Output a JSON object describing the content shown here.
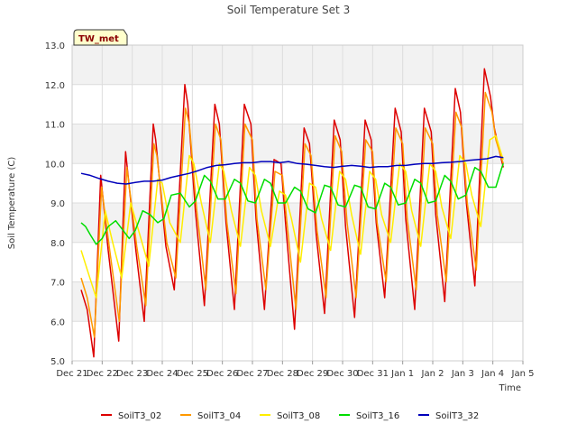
{
  "chart_data": {
    "type": "line",
    "title": "Soil Temperature Set 3",
    "xlabel": "Time",
    "ylabel": "Soil Temperature (C)",
    "badge": "TW_met",
    "ylim": [
      5.0,
      13.0
    ],
    "yticks": [
      "5.0",
      "6.0",
      "7.0",
      "8.0",
      "9.0",
      "10.0",
      "11.0",
      "12.0",
      "13.0"
    ],
    "xlim": [
      0,
      15
    ],
    "xticks": [
      {
        "pos": 0,
        "label": "Dec 21"
      },
      {
        "pos": 1,
        "label": "Dec 22"
      },
      {
        "pos": 2,
        "label": "Dec 23"
      },
      {
        "pos": 3,
        "label": "Dec 24"
      },
      {
        "pos": 4,
        "label": "Dec 25"
      },
      {
        "pos": 5,
        "label": "Dec 26"
      },
      {
        "pos": 6,
        "label": "Dec 27"
      },
      {
        "pos": 7,
        "label": "Dec 28"
      },
      {
        "pos": 8,
        "label": "Dec 29"
      },
      {
        "pos": 9,
        "label": "Dec 30"
      },
      {
        "pos": 10,
        "label": "Dec 31"
      },
      {
        "pos": 11,
        "label": "Jan 1"
      },
      {
        "pos": 12,
        "label": "Jan 2"
      },
      {
        "pos": 13,
        "label": "Jan 3"
      },
      {
        "pos": 14,
        "label": "Jan 4"
      },
      {
        "pos": 15,
        "label": "Jan 5"
      }
    ],
    "grid": true,
    "legend_position": "bottom",
    "series": [
      {
        "name": "SoilT3_02",
        "color": "#dd0000",
        "x": [
          0.3,
          0.5,
          0.72,
          0.95,
          1.2,
          1.55,
          1.78,
          2.12,
          2.4,
          2.7,
          2.78,
          3.12,
          3.4,
          3.75,
          3.85,
          4.1,
          4.4,
          4.75,
          4.9,
          5.12,
          5.4,
          5.73,
          5.95,
          6.12,
          6.4,
          6.72,
          6.95,
          7.1,
          7.4,
          7.72,
          7.9,
          8.12,
          8.4,
          8.72,
          8.92,
          9.1,
          9.4,
          9.75,
          9.95,
          10.12,
          10.4,
          10.75,
          10.95,
          11.1,
          11.4,
          11.72,
          11.95,
          12.1,
          12.4,
          12.75,
          12.92,
          13.12,
          13.4,
          13.72,
          13.92,
          14.05,
          14.25,
          14.35
        ],
        "y": [
          6.8,
          6.3,
          5.1,
          9.7,
          7.8,
          5.5,
          10.3,
          7.8,
          6.0,
          11.0,
          10.6,
          7.9,
          6.8,
          12.0,
          11.5,
          8.8,
          6.4,
          11.5,
          11.0,
          8.5,
          6.3,
          11.5,
          11.0,
          8.6,
          6.3,
          10.1,
          10.0,
          8.5,
          5.8,
          10.9,
          10.5,
          8.2,
          6.2,
          11.1,
          10.6,
          8.4,
          6.1,
          11.1,
          10.6,
          8.5,
          6.6,
          11.4,
          10.8,
          8.6,
          6.3,
          11.4,
          10.8,
          8.7,
          6.5,
          11.9,
          11.3,
          9.0,
          6.9,
          12.4,
          11.7,
          10.9,
          10.2,
          9.9
        ]
      },
      {
        "name": "SoilT3_04",
        "color": "#ff9900",
        "x": [
          0.3,
          0.5,
          0.74,
          0.98,
          1.25,
          1.57,
          1.82,
          2.15,
          2.45,
          2.72,
          2.82,
          3.15,
          3.45,
          3.77,
          3.9,
          4.15,
          4.45,
          4.77,
          4.95,
          5.15,
          5.45,
          5.75,
          6.0,
          6.15,
          6.45,
          6.75,
          7.0,
          7.15,
          7.45,
          7.75,
          7.95,
          8.15,
          8.45,
          8.75,
          8.97,
          9.15,
          9.45,
          9.77,
          10.0,
          10.15,
          10.45,
          10.77,
          11.0,
          11.15,
          11.45,
          11.75,
          12.0,
          12.15,
          12.45,
          12.77,
          12.97,
          13.15,
          13.45,
          13.75,
          13.97,
          14.1,
          14.3,
          14.35
        ],
        "y": [
          7.1,
          6.6,
          5.6,
          9.4,
          7.8,
          6.0,
          9.9,
          7.9,
          6.4,
          10.5,
          10.2,
          8.0,
          7.1,
          11.4,
          11.0,
          8.8,
          6.8,
          11.0,
          10.6,
          8.5,
          6.7,
          11.0,
          10.6,
          8.6,
          6.8,
          9.8,
          9.7,
          8.5,
          6.3,
          10.5,
          10.2,
          8.3,
          6.6,
          10.7,
          10.3,
          8.5,
          6.6,
          10.6,
          10.3,
          8.5,
          7.0,
          10.9,
          10.5,
          8.6,
          6.8,
          10.9,
          10.5,
          8.7,
          7.0,
          11.3,
          10.9,
          9.0,
          7.3,
          11.8,
          11.3,
          10.6,
          10.1,
          10.0
        ]
      },
      {
        "name": "SoilT3_08",
        "color": "#ffee00",
        "x": [
          0.3,
          0.55,
          0.8,
          1.1,
          1.35,
          1.65,
          1.95,
          2.25,
          2.55,
          2.85,
          3.0,
          3.25,
          3.6,
          3.9,
          4.05,
          4.3,
          4.6,
          4.9,
          5.05,
          5.3,
          5.6,
          5.9,
          6.1,
          6.3,
          6.6,
          6.9,
          7.1,
          7.3,
          7.6,
          7.9,
          8.1,
          8.3,
          8.6,
          8.9,
          9.1,
          9.3,
          9.6,
          9.9,
          10.1,
          10.3,
          10.6,
          10.9,
          11.1,
          11.3,
          11.6,
          11.9,
          12.1,
          12.3,
          12.6,
          12.9,
          13.1,
          13.3,
          13.6,
          13.9,
          14.1,
          14.3,
          14.35
        ],
        "y": [
          7.8,
          7.2,
          6.6,
          8.8,
          8.0,
          7.1,
          9.0,
          8.2,
          7.4,
          9.6,
          9.5,
          8.5,
          8.0,
          10.2,
          10.0,
          9.0,
          8.0,
          10.0,
          9.8,
          8.8,
          7.9,
          9.9,
          9.7,
          8.8,
          7.9,
          9.3,
          9.2,
          8.6,
          7.5,
          9.5,
          9.4,
          8.6,
          7.8,
          9.8,
          9.6,
          8.7,
          7.7,
          9.8,
          9.6,
          8.7,
          8.0,
          10.0,
          9.8,
          8.8,
          7.9,
          10.0,
          9.8,
          8.9,
          8.1,
          10.2,
          10.0,
          9.2,
          8.4,
          10.6,
          10.7,
          10.2,
          10.1
        ]
      },
      {
        "name": "SoilT3_16",
        "color": "#00dd00",
        "x": [
          0.3,
          0.45,
          0.6,
          0.8,
          1.0,
          1.2,
          1.45,
          1.7,
          1.9,
          2.1,
          2.35,
          2.6,
          2.85,
          3.05,
          3.3,
          3.6,
          3.9,
          4.1,
          4.4,
          4.6,
          4.85,
          5.1,
          5.4,
          5.6,
          5.85,
          6.1,
          6.4,
          6.6,
          6.85,
          7.1,
          7.4,
          7.6,
          7.85,
          8.1,
          8.4,
          8.6,
          8.85,
          9.1,
          9.4,
          9.6,
          9.85,
          10.1,
          10.4,
          10.6,
          10.85,
          11.1,
          11.4,
          11.6,
          11.85,
          12.1,
          12.4,
          12.6,
          12.85,
          13.1,
          13.4,
          13.6,
          13.85,
          14.1,
          14.3,
          14.35
        ],
        "y": [
          8.5,
          8.4,
          8.2,
          7.95,
          8.1,
          8.4,
          8.55,
          8.3,
          8.1,
          8.3,
          8.8,
          8.7,
          8.5,
          8.6,
          9.2,
          9.25,
          8.9,
          9.05,
          9.7,
          9.55,
          9.1,
          9.1,
          9.6,
          9.5,
          9.05,
          9.0,
          9.6,
          9.5,
          9.0,
          9.0,
          9.4,
          9.3,
          8.85,
          8.75,
          9.45,
          9.4,
          8.95,
          8.9,
          9.45,
          9.4,
          8.9,
          8.85,
          9.5,
          9.4,
          8.95,
          9.0,
          9.6,
          9.5,
          9.0,
          9.05,
          9.7,
          9.55,
          9.1,
          9.2,
          9.9,
          9.8,
          9.4,
          9.4,
          9.9,
          10.0
        ]
      },
      {
        "name": "SoilT3_32",
        "color": "#0000bb",
        "x": [
          0.3,
          0.6,
          0.9,
          1.2,
          1.5,
          1.8,
          2.1,
          2.4,
          2.7,
          3.0,
          3.3,
          3.6,
          3.9,
          4.2,
          4.5,
          4.8,
          5.1,
          5.4,
          5.7,
          6.0,
          6.3,
          6.6,
          6.9,
          7.2,
          7.5,
          7.8,
          8.1,
          8.4,
          8.7,
          9.0,
          9.3,
          9.6,
          9.9,
          10.2,
          10.5,
          10.8,
          11.1,
          11.4,
          11.7,
          12.0,
          12.3,
          12.6,
          12.9,
          13.2,
          13.5,
          13.8,
          14.1,
          14.35
        ],
        "y": [
          9.75,
          9.7,
          9.62,
          9.55,
          9.5,
          9.48,
          9.52,
          9.55,
          9.55,
          9.58,
          9.65,
          9.7,
          9.75,
          9.82,
          9.9,
          9.95,
          9.97,
          10.0,
          10.02,
          10.02,
          10.05,
          10.05,
          10.02,
          10.05,
          10.0,
          9.98,
          9.95,
          9.92,
          9.9,
          9.93,
          9.95,
          9.93,
          9.9,
          9.92,
          9.92,
          9.95,
          9.95,
          9.98,
          10.0,
          10.0,
          10.02,
          10.03,
          10.05,
          10.08,
          10.1,
          10.12,
          10.18,
          10.15
        ]
      }
    ]
  }
}
